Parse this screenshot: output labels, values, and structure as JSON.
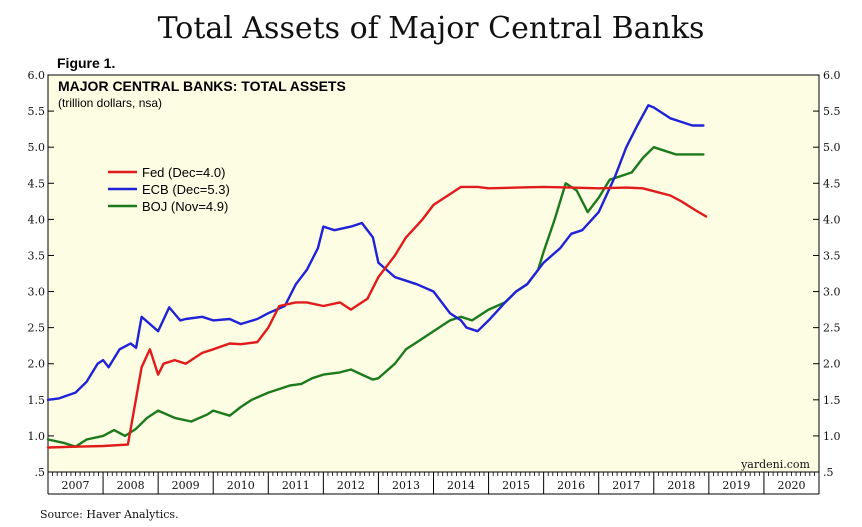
{
  "page_title": "Total Assets of Major Central Banks",
  "figure_label": "Figure 1.",
  "source": "Source: Haver Analytics.",
  "brand": "yardeni.com",
  "chart_data": {
    "type": "line",
    "title": "MAJOR CENTRAL BANKS: TOTAL ASSETS",
    "subtitle": "(trillion dollars, nsa)",
    "background": "#fdfde4",
    "ylim": [
      0.5,
      6.0
    ],
    "yticks": [
      ".5",
      "1.0",
      "1.5",
      "2.0",
      "2.5",
      "3.0",
      "3.5",
      "4.0",
      "4.5",
      "5.0",
      "5.5",
      "6.0"
    ],
    "xlim": [
      2007,
      2021
    ],
    "xticks": [
      "2007",
      "2008",
      "2009",
      "2010",
      "2011",
      "2012",
      "2013",
      "2014",
      "2015",
      "2016",
      "2017",
      "2018",
      "2019",
      "2020"
    ],
    "grid": false,
    "legend_position": "upper-left",
    "series": [
      {
        "name": "Fed (Dec=4.0)",
        "color": "#e11b1b",
        "x": [
          2007.0,
          2007.5,
          2008.0,
          2008.45,
          2008.7,
          2008.85,
          2009.0,
          2009.1,
          2009.3,
          2009.5,
          2009.8,
          2010.0,
          2010.3,
          2010.5,
          2010.8,
          2011.0,
          2011.2,
          2011.5,
          2011.7,
          2012.0,
          2012.3,
          2012.5,
          2012.8,
          2013.0,
          2013.3,
          2013.5,
          2013.8,
          2014.0,
          2014.3,
          2014.5,
          2014.8,
          2015.0,
          2015.5,
          2016.0,
          2016.5,
          2017.0,
          2017.5,
          2017.8,
          2018.0,
          2018.3,
          2018.5,
          2018.75,
          2018.95
        ],
        "values": [
          0.84,
          0.85,
          0.86,
          0.88,
          1.95,
          2.2,
          1.85,
          2.0,
          2.05,
          2.0,
          2.15,
          2.2,
          2.28,
          2.27,
          2.3,
          2.5,
          2.8,
          2.85,
          2.85,
          2.8,
          2.85,
          2.75,
          2.9,
          3.2,
          3.5,
          3.75,
          4.0,
          4.2,
          4.35,
          4.45,
          4.45,
          4.43,
          4.44,
          4.45,
          4.44,
          4.43,
          4.44,
          4.43,
          4.39,
          4.33,
          4.25,
          4.13,
          4.04
        ]
      },
      {
        "name": "ECB (Dec=5.3)",
        "color": "#1f22d6",
        "x": [
          2007.0,
          2007.2,
          2007.5,
          2007.7,
          2007.9,
          2008.0,
          2008.1,
          2008.3,
          2008.5,
          2008.6,
          2008.7,
          2008.85,
          2009.0,
          2009.2,
          2009.4,
          2009.5,
          2009.8,
          2010.0,
          2010.3,
          2010.5,
          2010.8,
          2011.0,
          2011.3,
          2011.5,
          2011.7,
          2011.9,
          2012.0,
          2012.2,
          2012.5,
          2012.7,
          2012.9,
          2013.0,
          2013.3,
          2013.5,
          2013.7,
          2014.0,
          2014.3,
          2014.5,
          2014.6,
          2014.8,
          2015.0,
          2015.3,
          2015.5,
          2015.7,
          2016.0,
          2016.3,
          2016.5,
          2016.7,
          2017.0,
          2017.3,
          2017.5,
          2017.7,
          2017.9,
          2018.0,
          2018.3,
          2018.5,
          2018.7,
          2018.9
        ],
        "values": [
          1.5,
          1.52,
          1.6,
          1.75,
          2.0,
          2.05,
          1.95,
          2.2,
          2.28,
          2.22,
          2.65,
          2.55,
          2.45,
          2.78,
          2.6,
          2.62,
          2.65,
          2.6,
          2.62,
          2.55,
          2.62,
          2.7,
          2.8,
          3.1,
          3.3,
          3.6,
          3.9,
          3.85,
          3.9,
          3.95,
          3.75,
          3.4,
          3.2,
          3.15,
          3.1,
          3.0,
          2.7,
          2.6,
          2.5,
          2.45,
          2.6,
          2.85,
          3.0,
          3.1,
          3.4,
          3.6,
          3.8,
          3.85,
          4.1,
          4.6,
          5.0,
          5.3,
          5.58,
          5.55,
          5.4,
          5.35,
          5.3,
          5.3
        ]
      },
      {
        "name": "BOJ (Nov=4.9)",
        "color": "#1c7a1c",
        "x": [
          2007.0,
          2007.3,
          2007.5,
          2007.7,
          2008.0,
          2008.2,
          2008.4,
          2008.6,
          2008.8,
          2009.0,
          2009.3,
          2009.6,
          2009.9,
          2010.0,
          2010.3,
          2010.5,
          2010.7,
          2011.0,
          2011.2,
          2011.4,
          2011.6,
          2011.8,
          2012.0,
          2012.3,
          2012.5,
          2012.7,
          2012.9,
          2013.0,
          2013.3,
          2013.5,
          2013.7,
          2014.0,
          2014.3,
          2014.5,
          2014.7,
          2015.0,
          2015.3,
          2015.5,
          2015.7,
          2015.9,
          2016.0,
          2016.2,
          2016.4,
          2016.6,
          2016.8,
          2017.0,
          2017.2,
          2017.4,
          2017.6,
          2017.8,
          2018.0,
          2018.2,
          2018.4,
          2018.6,
          2018.9
        ],
        "values": [
          0.95,
          0.9,
          0.85,
          0.95,
          1.0,
          1.08,
          1.0,
          1.1,
          1.25,
          1.35,
          1.25,
          1.2,
          1.3,
          1.35,
          1.28,
          1.4,
          1.5,
          1.6,
          1.65,
          1.7,
          1.72,
          1.8,
          1.85,
          1.88,
          1.92,
          1.85,
          1.78,
          1.8,
          2.0,
          2.2,
          2.3,
          2.45,
          2.6,
          2.65,
          2.6,
          2.75,
          2.85,
          3.0,
          3.1,
          3.3,
          3.55,
          4.0,
          4.5,
          4.4,
          4.1,
          4.3,
          4.55,
          4.6,
          4.65,
          4.85,
          5.0,
          4.95,
          4.9,
          4.9,
          4.9
        ]
      }
    ]
  }
}
